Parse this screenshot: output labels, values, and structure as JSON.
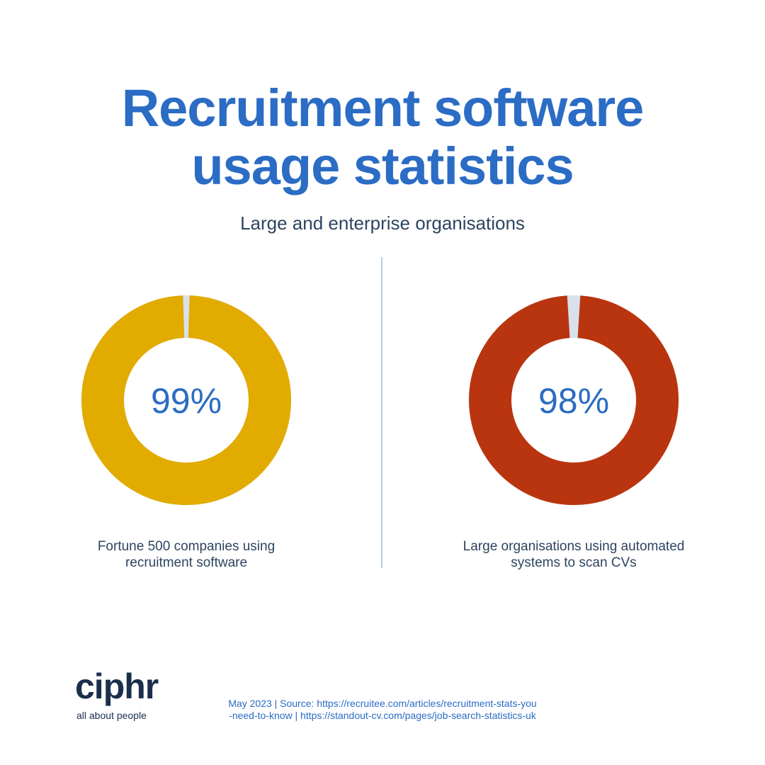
{
  "header": {
    "title": "Recruitment software usage statistics",
    "subtitle": "Large and enterprise organisations"
  },
  "chart_data": [
    {
      "type": "donut",
      "values": [
        99
      ],
      "value_labels": [
        "99%"
      ],
      "caption": "Fortune 500 companies using recruitment software",
      "color": "#e2ab00",
      "track_color": "#d8e1ec"
    },
    {
      "type": "donut",
      "values": [
        98
      ],
      "value_labels": [
        "98%"
      ],
      "caption": "Large organisations using automated systems to scan CVs",
      "color": "#b9350f",
      "track_color": "#d8e1ec"
    }
  ],
  "footer": {
    "logo": "ciphr",
    "tagline": "all about people",
    "source": "May 2023 | Source: https://recruitee.com/articles/recruitment-stats-you-need-to-know | https://standout-cv.com/pages/job-search-statistics-uk"
  }
}
